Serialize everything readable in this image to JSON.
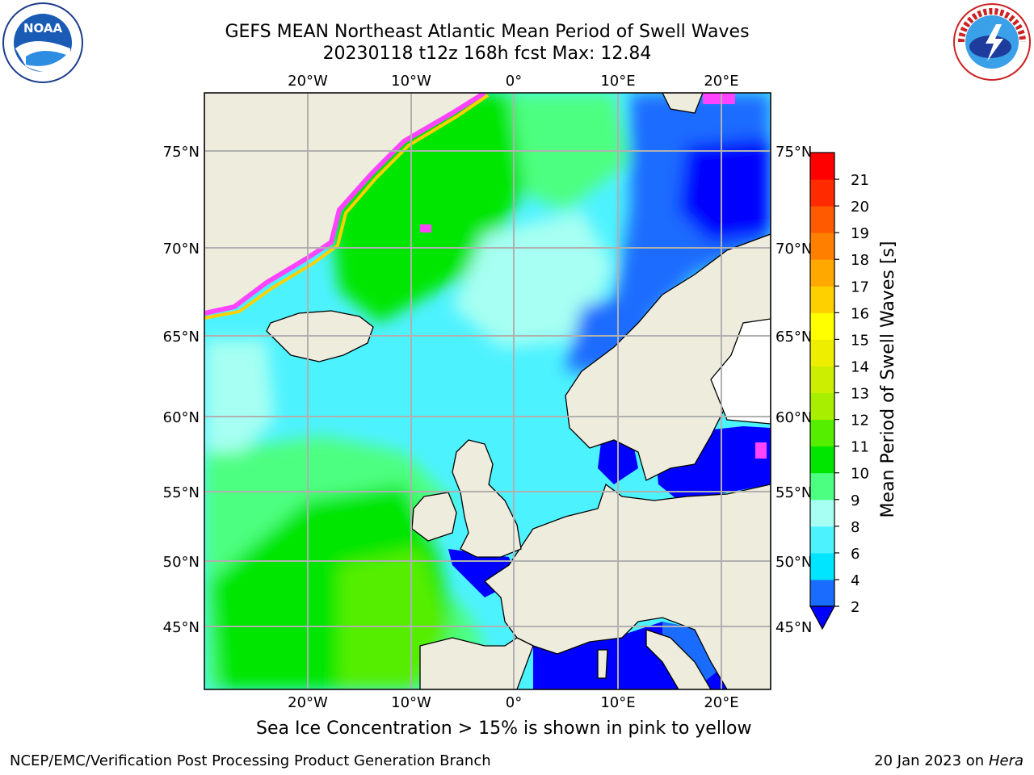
{
  "header": {
    "title_line1": "GEFS MEAN Northeast Atlantic Mean Period of Swell Waves",
    "title_line2": "20230118 t12z 168h fcst   Max: 12.84"
  },
  "logos": {
    "left": {
      "name": "noaa-logo",
      "text": "NOAA"
    },
    "right": {
      "name": "national-weather-service-logo",
      "text": "NATIONAL WEATHER SERVICE"
    }
  },
  "map": {
    "lon_labels": [
      "20°W",
      "10°W",
      "0°",
      "10°E",
      "20°E"
    ],
    "lat_labels": [
      "75°N",
      "70°N",
      "65°N",
      "60°N",
      "55°N",
      "50°N",
      "45°N"
    ],
    "land_color": "#eeecdc",
    "grid_color": "#b0b0b0"
  },
  "colorbar": {
    "label": "Mean Period of Swell Waves [s]",
    "ticks": [
      "2",
      "4",
      "6",
      "8",
      "9",
      "10",
      "11",
      "12",
      "13",
      "14",
      "15",
      "16",
      "17",
      "18",
      "19",
      "20",
      "21"
    ],
    "colors": [
      "#1a6cff",
      "#00e5ff",
      "#4df2ff",
      "#a6fff2",
      "#4dff80",
      "#00e600",
      "#55ee00",
      "#a8ee00",
      "#ccee00",
      "#eeee00",
      "#ffff00",
      "#ffd000",
      "#ffa800",
      "#ff8000",
      "#ff5a00",
      "#ff2a00",
      "#ff0000"
    ],
    "under_color": "#0000ff"
  },
  "notes": {
    "sea_ice": "Sea Ice Concentration > 15% is shown in pink to yellow"
  },
  "footer": {
    "left": "NCEP/EMC/Verification Post Processing Product Generation Branch",
    "right_prefix": "20 Jan 2023 on ",
    "right_machine": "Hera"
  }
}
